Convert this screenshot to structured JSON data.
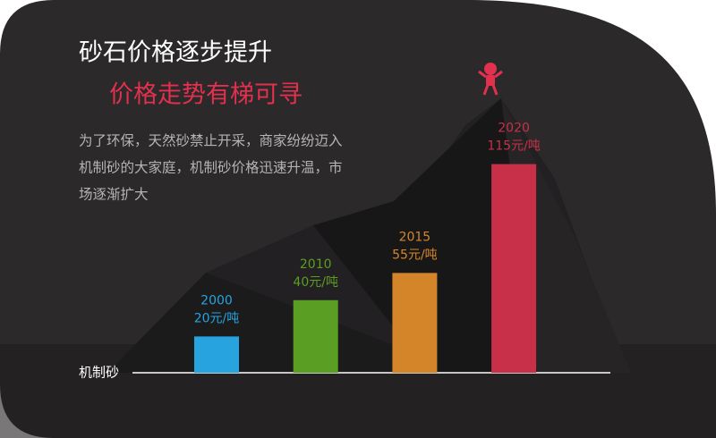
{
  "chart_data": {
    "type": "bar",
    "title": "砂石价格逐步提升",
    "subtitle": "价格走势有梯可寻",
    "description": [
      "为了环保，天然砂禁止开采，商家纷纷迈入",
      "机制砂的大家庭，机制砂价格迅速升温，市",
      "场逐渐扩大"
    ],
    "x_label": "机制砂",
    "categories": [
      "2000",
      "2010",
      "2015",
      "2020"
    ],
    "values": [
      20,
      40,
      55,
      115
    ],
    "value_labels": [
      "20元/吨",
      "40元/吨",
      "55元/吨",
      "115元/吨"
    ],
    "colors": [
      "#27a3df",
      "#5a9e23",
      "#d4852a",
      "#c8304a"
    ]
  }
}
